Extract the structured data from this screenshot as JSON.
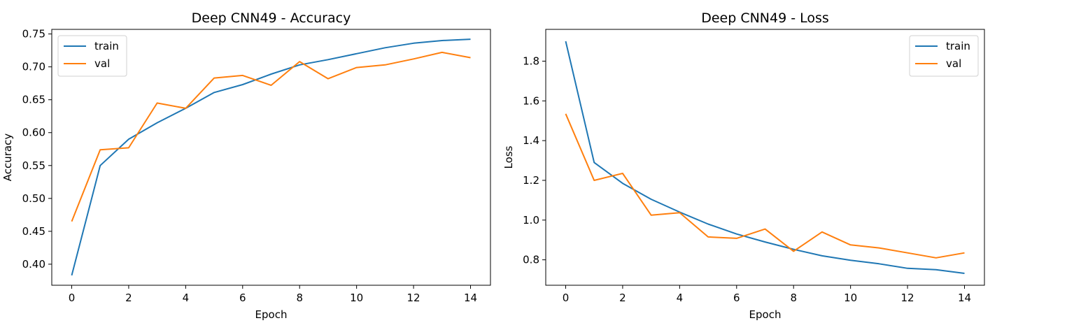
{
  "chart_data": [
    {
      "type": "line",
      "title": "Deep CNN49 - Accuracy",
      "xlabel": "Epoch",
      "ylabel": "Accuracy",
      "xlim": [
        -0.7,
        14.7
      ],
      "ylim": [
        0.368,
        0.757
      ],
      "xticks": [
        0,
        2,
        4,
        6,
        8,
        10,
        12,
        14
      ],
      "yticks": [
        0.4,
        0.45,
        0.5,
        0.55,
        0.6,
        0.65,
        0.7,
        0.75
      ],
      "ytick_labels": [
        "0.40",
        "0.45",
        "0.50",
        "0.55",
        "0.60",
        "0.65",
        "0.70",
        "0.75"
      ],
      "legend_position": "upper-left",
      "grid": false,
      "x": [
        0,
        1,
        2,
        3,
        4,
        5,
        6,
        7,
        8,
        9,
        10,
        11,
        12,
        13,
        14
      ],
      "series": [
        {
          "name": "train",
          "color": "#1f77b4",
          "values": [
            0.383,
            0.55,
            0.59,
            0.615,
            0.637,
            0.661,
            0.673,
            0.689,
            0.703,
            0.711,
            0.72,
            0.729,
            0.736,
            0.74,
            0.742
          ]
        },
        {
          "name": "val",
          "color": "#ff7f0e",
          "values": [
            0.465,
            0.574,
            0.577,
            0.645,
            0.637,
            0.683,
            0.687,
            0.672,
            0.708,
            0.682,
            0.699,
            0.703,
            0.712,
            0.722,
            0.714
          ]
        }
      ]
    },
    {
      "type": "line",
      "title": "Deep CNN49 - Loss",
      "xlabel": "Epoch",
      "ylabel": "Loss",
      "xlim": [
        -0.7,
        14.7
      ],
      "ylim": [
        0.672,
        1.96
      ],
      "xticks": [
        0,
        2,
        4,
        6,
        8,
        10,
        12,
        14
      ],
      "yticks": [
        0.8,
        1.0,
        1.2,
        1.4,
        1.6,
        1.8
      ],
      "ytick_labels": [
        "0.8",
        "1.0",
        "1.2",
        "1.4",
        "1.6",
        "1.8"
      ],
      "legend_position": "upper-right",
      "grid": false,
      "x": [
        0,
        1,
        2,
        3,
        4,
        5,
        6,
        7,
        8,
        9,
        10,
        11,
        12,
        13,
        14
      ],
      "series": [
        {
          "name": "train",
          "color": "#1f77b4",
          "values": [
            1.9,
            1.29,
            1.185,
            1.105,
            1.04,
            0.98,
            0.93,
            0.89,
            0.853,
            0.82,
            0.798,
            0.78,
            0.757,
            0.75,
            0.732
          ]
        },
        {
          "name": "val",
          "color": "#ff7f0e",
          "values": [
            1.535,
            1.2,
            1.235,
            1.025,
            1.037,
            0.915,
            0.908,
            0.955,
            0.843,
            0.94,
            0.875,
            0.86,
            0.835,
            0.81,
            0.835
          ]
        }
      ]
    }
  ]
}
